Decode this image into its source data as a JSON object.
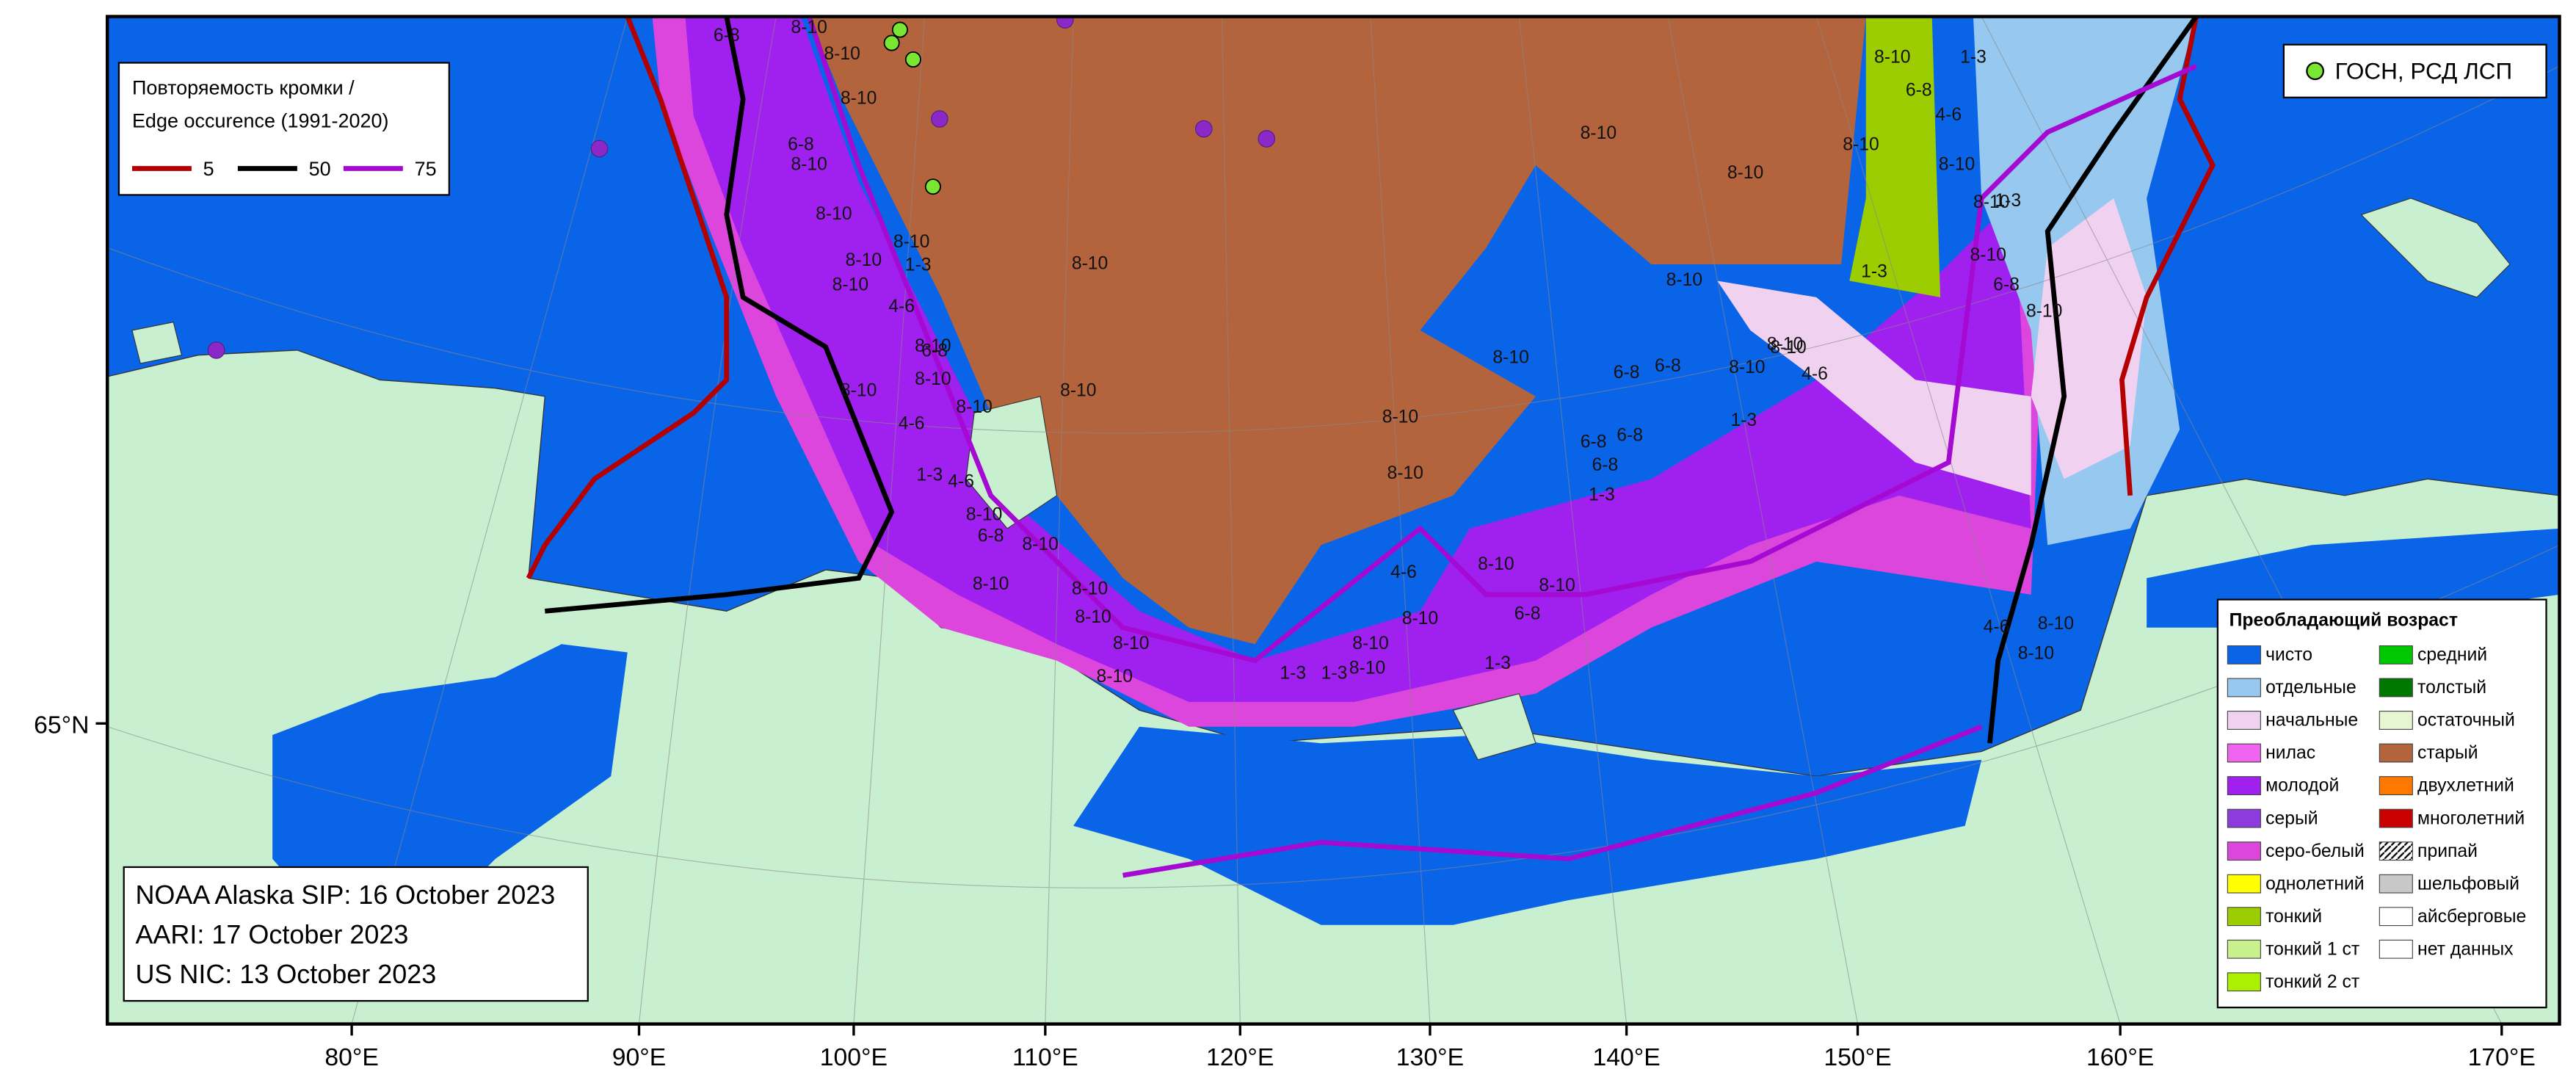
{
  "legend_edge": {
    "title_ru": "Повторяемость кромки /",
    "title_en": "Edge occurence (1991-2020)",
    "items": [
      {
        "label": "5",
        "color": "#b40000"
      },
      {
        "label": "50",
        "color": "#000000"
      },
      {
        "label": "75",
        "color": "#a40ad2"
      }
    ]
  },
  "legend_points": {
    "label": "ГОСН, РСД ЛСП",
    "color": "#78e632"
  },
  "legend_age": {
    "title": "Преобладающий возраст",
    "items": [
      {
        "label": "чисто",
        "color": "#0a64e8"
      },
      {
        "label": "отдельные",
        "color": "#96c8f0"
      },
      {
        "label": "начальные",
        "color": "#f0d2f0"
      },
      {
        "label": "нилас",
        "color": "#f064f0"
      },
      {
        "label": "молодой",
        "color": "#a020f0"
      },
      {
        "label": "серый",
        "color": "#8c3cdc"
      },
      {
        "label": "серо-белый",
        "color": "#dc46dc"
      },
      {
        "label": "однолетний",
        "color": "#ffff00"
      },
      {
        "label": "тонкий",
        "color": "#9bcd00"
      },
      {
        "label": "тонкий 1 ст",
        "color": "#c8f08c"
      },
      {
        "label": "тонкий 2 ст",
        "color": "#aaf000"
      },
      {
        "label": "средний",
        "color": "#00c800"
      },
      {
        "label": "толстый",
        "color": "#007800"
      },
      {
        "label": "остаточный",
        "color": "#e6f5d2"
      },
      {
        "label": "старый",
        "color": "#b4643c"
      },
      {
        "label": "двухлетний",
        "color": "#ff7800"
      },
      {
        "label": "многолетний",
        "color": "#c80000"
      },
      {
        "label": "припай",
        "color": "hatch"
      },
      {
        "label": "шельфовый",
        "color": "#c8c8c8"
      },
      {
        "label": "айсберговые",
        "color": "#ffffff"
      },
      {
        "label": "нет данных",
        "color": "#ffffff"
      }
    ]
  },
  "info": [
    "NOAA Alaska SIP: 16 October 2023",
    "AARI: 17 October 2023",
    "US NIC: 13 October 2023"
  ],
  "axis": {
    "x_labels": [
      "80°E",
      "90°E",
      "100°E",
      "110°E",
      "120°E",
      "130°E",
      "140°E",
      "150°E",
      "160°E",
      "170°E"
    ],
    "y_label": "65°N"
  },
  "map_labels": [
    "8-10",
    "8-10",
    "8-10",
    "8-10",
    "8-10",
    "8-10",
    "8-10",
    "1-3",
    "8-10",
    "8-10",
    "6-8",
    "4-6",
    "8-10",
    "8-10",
    "8-10",
    "4-6",
    "8-10",
    "6-8",
    "1-3",
    "4-6",
    "8-10",
    "8-10",
    "8-10",
    "8-10",
    "8-10",
    "8-10",
    "6-8",
    "6-8",
    "8-10",
    "8-10",
    "8-10",
    "8-10",
    "8-10",
    "8-10",
    "8-10",
    "8-10",
    "1-3",
    "6-8",
    "6-8",
    "6-8",
    "1-3",
    "8-10",
    "4-6",
    "8-10",
    "1-3",
    "8-10",
    "8-10",
    "8-10",
    "6-8",
    "8-10",
    "4-6",
    "8-10",
    "8-10",
    "1-3",
    "8-10",
    "1-3",
    "6-8",
    "4-6",
    "8-10",
    "8-10",
    "1-3",
    "8-10",
    "6-8",
    "8-10",
    "4-6",
    "8-10",
    "8-10",
    "6-8",
    "6-8",
    "8-10",
    "1-3",
    "1-3"
  ]
}
